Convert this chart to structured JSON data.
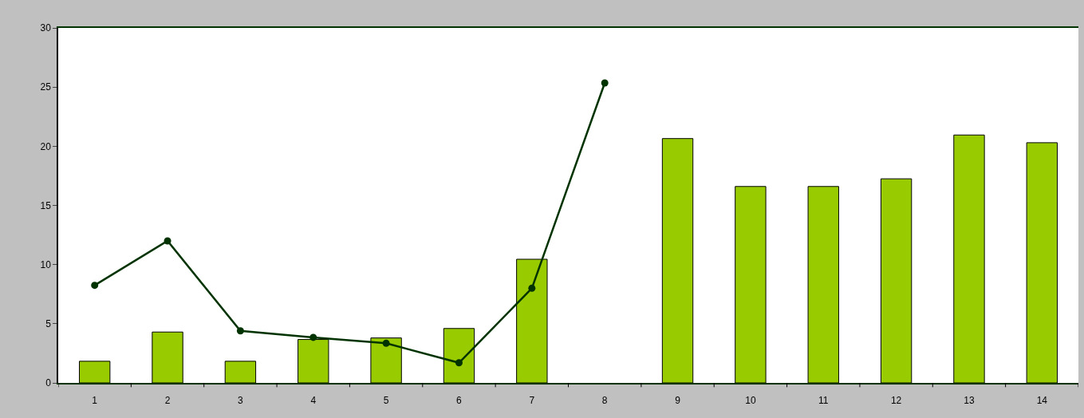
{
  "chart_data": {
    "type": "bar",
    "categories": [
      "1",
      "2",
      "3",
      "4",
      "5",
      "6",
      "7",
      "8",
      "9",
      "10",
      "11",
      "12",
      "13",
      "14"
    ],
    "series": [
      {
        "color": "#99cc00",
        "values": [
          1.83,
          4.3,
          1.83,
          3.67,
          3.8,
          4.6,
          10.45,
          null,
          20.65,
          16.6,
          16.6,
          17.25,
          20.95,
          20.3
        ]
      },
      {
        "type": "line",
        "color": "#003300",
        "marker": "circle",
        "line_style": "solid",
        "values": [
          8.25,
          12.0,
          4.4,
          3.85,
          3.35,
          1.7,
          8.0,
          25.35,
          null,
          null,
          null,
          null,
          null,
          null
        ]
      }
    ],
    "ylim": [
      0,
      30
    ],
    "yticks": [
      0,
      5,
      10,
      15,
      20,
      25,
      30
    ]
  }
}
